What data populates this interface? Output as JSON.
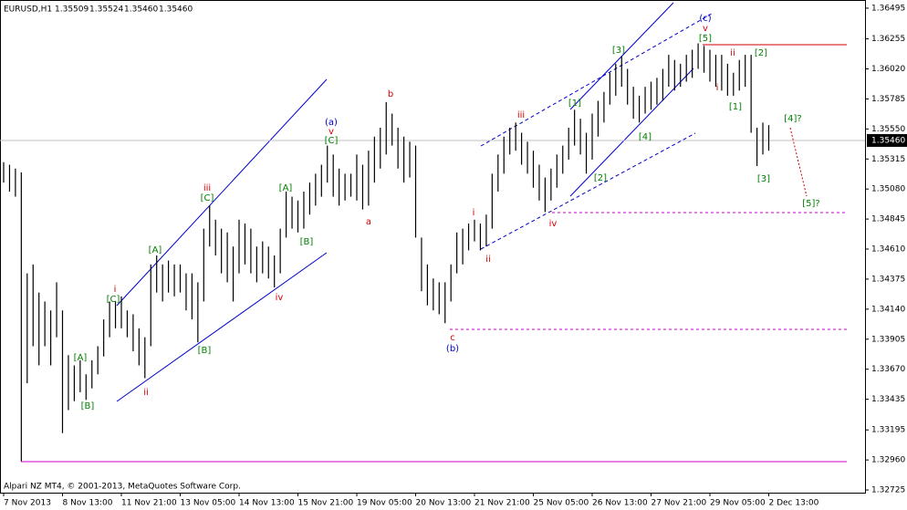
{
  "header": {
    "symbol": "EURUSD,H1",
    "ohlc": [
      {
        "value": 1.35509,
        "label": "1.35509"
      },
      {
        "value": 1.35524,
        "label": "1.35524"
      },
      {
        "value": 1.3546,
        "label": "1.35460"
      },
      {
        "value": 1.3546,
        "label": "1.35460"
      }
    ]
  },
  "footer": "Alpari NZ MT4, © 2001-2013, MetaQuotes Software Corp.",
  "chart_data": {
    "type": "ohlc",
    "color": "#000000",
    "high": [
      1.3529,
      1.3527,
      1.3524,
      1.3521,
      1.3442,
      1.3449,
      1.3427,
      1.342,
      1.3413,
      1.3435,
      1.3413,
      1.3378,
      1.337,
      1.3374,
      1.3363,
      1.3374,
      1.3385,
      1.3406,
      1.342,
      1.342,
      1.3424,
      1.3413,
      1.341,
      1.3399,
      1.3392,
      1.3449,
      1.3456,
      1.3449,
      1.3452,
      1.3449,
      1.3449,
      1.3442,
      1.3442,
      1.3435,
      1.3477,
      1.3495,
      1.3484,
      1.3477,
      1.3474,
      1.3463,
      1.3484,
      1.3481,
      1.3477,
      1.3463,
      1.3467,
      1.3463,
      1.3456,
      1.3477,
      1.3506,
      1.3502,
      1.3499,
      1.3506,
      1.3513,
      1.352,
      1.3527,
      1.3542,
      1.3535,
      1.3524,
      1.352,
      1.352,
      1.3535,
      1.3527,
      1.3538,
      1.3549,
      1.3556,
      1.3576,
      1.3567,
      1.3556,
      1.3549,
      1.3545,
      1.3542,
      1.347,
      1.3449,
      1.3438,
      1.3435,
      1.3435,
      1.3449,
      1.3474,
      1.3477,
      1.3481,
      1.3484,
      1.3481,
      1.3488,
      1.352,
      1.3535,
      1.3549,
      1.3556,
      1.356,
      1.3552,
      1.3545,
      1.3538,
      1.3527,
      1.3517,
      1.3524,
      1.3535,
      1.3542,
      1.3556,
      1.357,
      1.3563,
      1.3552,
      1.3567,
      1.3577,
      1.3584,
      1.3599,
      1.3606,
      1.3612,
      1.3602,
      1.3588,
      1.3581,
      1.3588,
      1.3592,
      1.3595,
      1.3602,
      1.3613,
      1.3609,
      1.3606,
      1.3613,
      1.3617,
      1.3622,
      1.362,
      1.3617,
      1.3613,
      1.3613,
      1.3606,
      1.3599,
      1.3609,
      1.3613,
      1.3613,
      1.3556,
      1.356,
      1.3558
    ],
    "low": [
      1.3513,
      1.3506,
      1.3502,
      1.3295,
      1.3356,
      1.3385,
      1.337,
      1.3385,
      1.337,
      1.3392,
      1.3317,
      1.3335,
      1.3342,
      1.3349,
      1.3343,
      1.3352,
      1.3363,
      1.3377,
      1.3392,
      1.3399,
      1.3399,
      1.3392,
      1.3381,
      1.337,
      1.336,
      1.3385,
      1.3427,
      1.342,
      1.3427,
      1.3424,
      1.3427,
      1.3413,
      1.3406,
      1.3388,
      1.342,
      1.3463,
      1.3456,
      1.3442,
      1.3435,
      1.342,
      1.3442,
      1.3449,
      1.3442,
      1.3435,
      1.3442,
      1.3438,
      1.3431,
      1.3442,
      1.347,
      1.3477,
      1.3474,
      1.3477,
      1.3488,
      1.3495,
      1.3502,
      1.3513,
      1.3502,
      1.3495,
      1.3499,
      1.3502,
      1.3499,
      1.3492,
      1.3495,
      1.3513,
      1.3524,
      1.3535,
      1.3542,
      1.3524,
      1.3513,
      1.3517,
      1.347,
      1.3428,
      1.3417,
      1.3413,
      1.341,
      1.3403,
      1.342,
      1.3442,
      1.3449,
      1.346,
      1.3467,
      1.346,
      1.3463,
      1.3477,
      1.3506,
      1.352,
      1.3535,
      1.3538,
      1.3527,
      1.352,
      1.3509,
      1.3499,
      1.349,
      1.3499,
      1.3509,
      1.352,
      1.3531,
      1.3542,
      1.3535,
      1.352,
      1.3531,
      1.3549,
      1.356,
      1.3574,
      1.3581,
      1.3588,
      1.3574,
      1.3563,
      1.356,
      1.3567,
      1.357,
      1.3574,
      1.3577,
      1.3588,
      1.3585,
      1.3588,
      1.3592,
      1.3595,
      1.3602,
      1.3599,
      1.3592,
      1.3588,
      1.3585,
      1.3581,
      1.3581,
      1.3585,
      1.3588,
      1.3552,
      1.3526,
      1.3535,
      1.3538
    ],
    "ylim": [
      1.32704,
      1.36559
    ],
    "yticks": [
      1.36495,
      1.36255,
      {
        "value": 1.3602,
        "label": "1.36020"
      },
      1.35785,
      {
        "value": 1.3555,
        "label": "1.35550"
      },
      1.35315,
      {
        "value": 1.3508,
        "label": "1.35080"
      },
      1.34845,
      {
        "value": 1.3461,
        "label": "1.34610"
      },
      1.34375,
      {
        "value": 1.3414,
        "label": "1.34140"
      },
      1.33905,
      {
        "value": 1.3367,
        "label": "1.33670"
      },
      1.33435,
      1.33195,
      {
        "value": 1.3296,
        "label": "1.32960"
      },
      1.32725
    ],
    "xticks": [
      "7 Nov 2013",
      "8 Nov 13:00",
      "11 Nov 21:00",
      "13 Nov 05:00",
      "14 Nov 13:00",
      "15 Nov 21:00",
      "19 Nov 05:00",
      "20 Nov 13:00",
      "21 Nov 21:00",
      "25 Nov 05:00",
      "26 Nov 13:00",
      "27 Nov 21:00",
      "29 Nov 05:00",
      "2 Dec 13:00"
    ],
    "current_price": {
      "value": 1.3546,
      "label": "1.35460"
    },
    "wave_labels": [
      {
        "text": "[A]",
        "color": "#008000"
      },
      {
        "text": "[B]",
        "color": "#008000"
      },
      {
        "text": "[C]",
        "color": "#008000"
      },
      {
        "text": "i",
        "color": "#cc0000"
      },
      {
        "text": "ii",
        "color": "#cc0000"
      },
      {
        "text": "[A]",
        "color": "#008000"
      },
      {
        "text": "[B]",
        "color": "#008000"
      },
      {
        "text": "[C]",
        "color": "#008000"
      },
      {
        "text": "iii",
        "color": "#cc0000"
      },
      {
        "text": "[A]",
        "color": "#008000"
      },
      {
        "text": "[B]",
        "color": "#008000"
      },
      {
        "text": "iv",
        "color": "#cc0000"
      },
      {
        "text": "(a)",
        "color": "#0000cc"
      },
      {
        "text": "v",
        "color": "#cc0000"
      },
      {
        "text": "[C]",
        "color": "#008000"
      },
      {
        "text": "a",
        "color": "#cc0000"
      },
      {
        "text": "b",
        "color": "#cc0000"
      },
      {
        "text": "c",
        "color": "#cc0000"
      },
      {
        "text": "(b)",
        "color": "#0000cc"
      },
      {
        "text": "i",
        "color": "#cc0000"
      },
      {
        "text": "ii",
        "color": "#cc0000"
      },
      {
        "text": "iii",
        "color": "#cc0000"
      },
      {
        "text": "iv",
        "color": "#cc0000"
      },
      {
        "text": "[1]",
        "color": "#008000"
      },
      {
        "text": "[2]",
        "color": "#008000"
      },
      {
        "text": "[3]",
        "color": "#008000"
      },
      {
        "text": "[4]",
        "color": "#008000"
      },
      {
        "text": "(c)",
        "color": "#0000cc"
      },
      {
        "text": "v",
        "color": "#cc0000"
      },
      {
        "text": "[5]",
        "color": "#008000"
      },
      {
        "text": "ii",
        "color": "#cc0000"
      },
      {
        "text": "i",
        "color": "#cc0000"
      },
      {
        "text": "[1]",
        "color": "#008000"
      },
      {
        "text": "[2]",
        "color": "#008000"
      },
      {
        "text": "[3]",
        "color": "#008000"
      },
      {
        "text": "[4]?",
        "color": "#008000"
      },
      {
        "text": "[5]?",
        "color": "#008000"
      }
    ]
  }
}
